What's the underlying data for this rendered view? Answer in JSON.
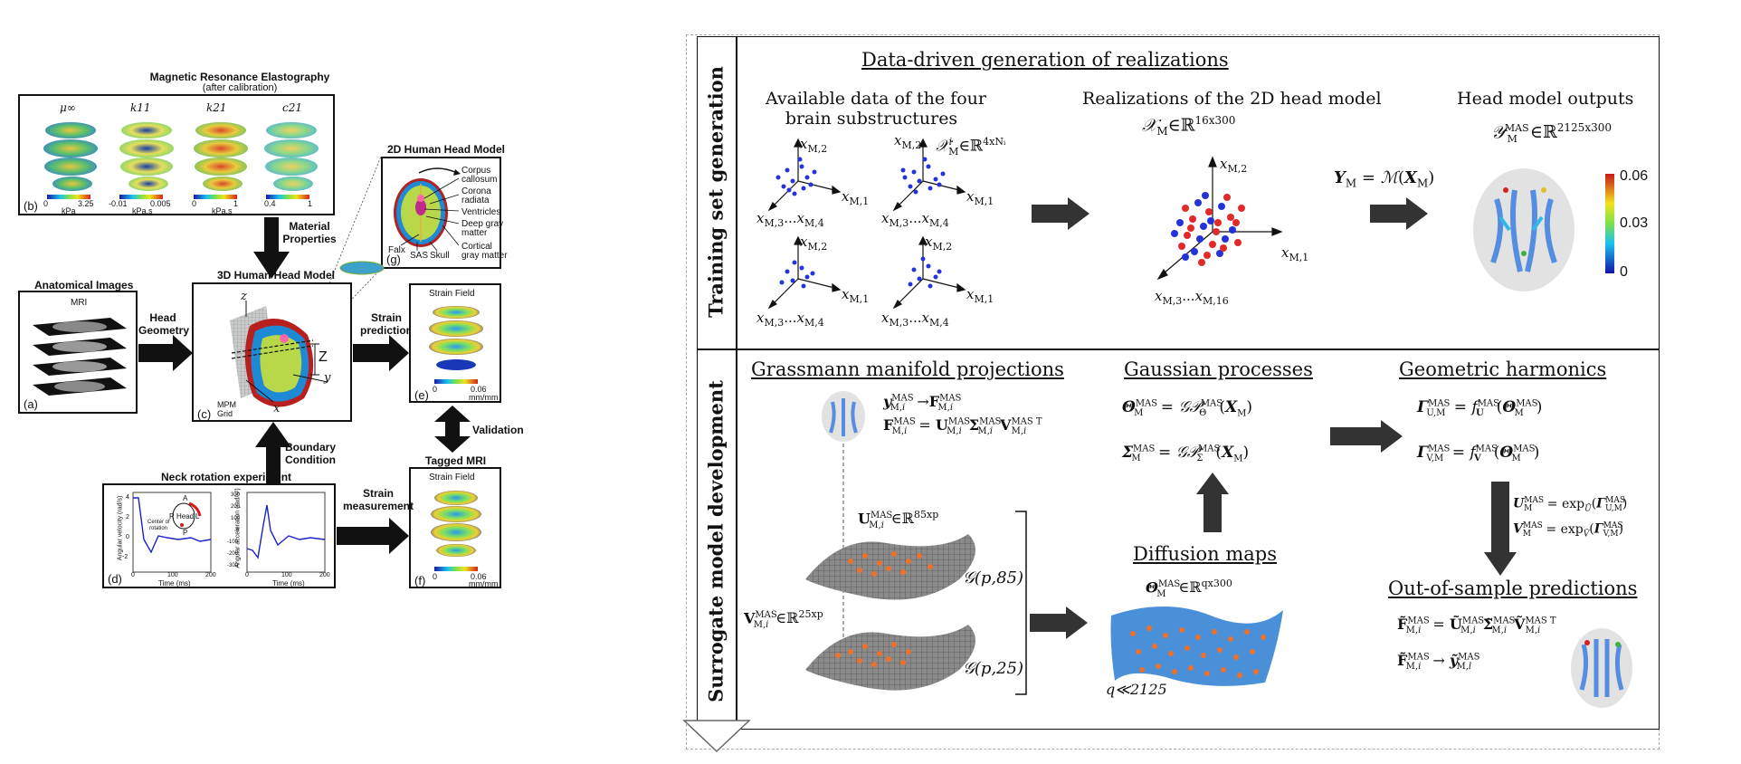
{
  "left": {
    "mre_title": "Magnetic Resonance Elastography",
    "mre_subtitle": "(after calibration)",
    "mre_params": [
      "μ∞",
      "k11",
      "k21",
      "c21"
    ],
    "mre_scales": [
      {
        "min": "0",
        "max": "3.25",
        "unit": "kPa"
      },
      {
        "min": "-0.01",
        "max": "0.005",
        "unit": "kPa.s"
      },
      {
        "min": "0",
        "max": "1",
        "unit": "kPa.s"
      },
      {
        "min": "0.4",
        "max": "1",
        "unit": ""
      }
    ],
    "panel_b": "(b)",
    "material_properties": [
      "Material",
      "Properties"
    ],
    "head2d_title": "2D Human Head Model",
    "head2d_labels": [
      "Corpus",
      "callosum",
      "Corona",
      "radiata",
      "Ventricles",
      "Deep gray",
      "matter",
      "Cortical",
      "gray matter",
      "Falx",
      "SAS",
      "Skull"
    ],
    "panel_g": "(g)",
    "anat_title": "Anatomical Images",
    "mri_label": "MRI",
    "panel_a": "(a)",
    "head_geometry": [
      "Head",
      "Geometry"
    ],
    "head3d_title": "3D Human Head Model",
    "axis_z": "z",
    "axis_Z": "Z",
    "axis_y": "y",
    "axis_x": "x",
    "mpm_grid": [
      "MPM",
      "Grid"
    ],
    "panel_c": "(c)",
    "strain_prediction": [
      "Strain",
      "prediction"
    ],
    "strain_field": "Strain Field",
    "strain_scale": {
      "min": "0",
      "max": "0.06",
      "unit": "mm/mm"
    },
    "panel_e": "(e)",
    "validation": "Validation",
    "tagged_mri": "Tagged MRI",
    "panel_f": "(f)",
    "boundary_condition": [
      "Boundary",
      "Condition"
    ],
    "neck_title": "Neck rotation experiment",
    "neck_ylabel1": "Angular velocity (rad/s)",
    "neck_ylabel2": "Angular acceleration (rad/s²)",
    "neck_xlabel": "Time (ms)",
    "neck_head_labels": [
      "A",
      "R",
      "L",
      "P",
      "Head",
      "Center of",
      "rotation"
    ],
    "neck_xticks": [
      "0",
      "100",
      "200"
    ],
    "neck_yticks1": [
      "4",
      "2",
      "0",
      "-2"
    ],
    "neck_yticks2": [
      "300",
      "200",
      "100",
      "0",
      "-100",
      "-200",
      "-300"
    ],
    "panel_d": "(d)",
    "strain_measurement": [
      "Strain",
      "measurement"
    ]
  },
  "right": {
    "side_top": "Training set generation",
    "side_bottom": "Surrogate model development",
    "data_driven_title": "Data-driven generation of realizations",
    "avail_data": [
      "Available data of the four",
      "brain substructures"
    ],
    "realizations": "Realizations of the 2D head model",
    "head_outputs": "Head model outputs",
    "x_m2": "x",
    "chi_label": "𝒳",
    "dim_16x300": "16x300",
    "dim_2125x300": "2125x300",
    "dim_4xN": "4xNᵢ",
    "Y_eq": "Y",
    "colorbar_ticks": [
      "0.06",
      "0.03",
      "0"
    ],
    "grassmann_title": "Grassmann manifold projections",
    "gaussian_title": "Gaussian processes",
    "geometric_title": "Geometric harmonics",
    "diffusion_title": "Diffusion maps",
    "oos_title": "Out-of-sample predictions",
    "g_p85": "𝒢(p,85)",
    "g_p25": "𝒢(p,25)",
    "dim_85xp": "85xp",
    "dim_25xp": "25xp",
    "dim_qx300": "qx300",
    "q_ll": "q≪2125"
  }
}
